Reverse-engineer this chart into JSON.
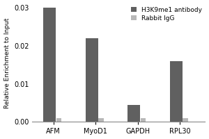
{
  "categories": [
    "AFM",
    "MyoD1",
    "GAPDH",
    "RPL30"
  ],
  "antibody_values": [
    0.03,
    0.022,
    0.0045,
    0.016
  ],
  "igg_values": [
    0.001,
    0.001,
    0.001,
    0.001
  ],
  "antibody_color": "#606060",
  "igg_color": "#b8b8b8",
  "ylabel": "Relative Enrichment to Input",
  "ylim_max": 0.031,
  "yticks": [
    0.0,
    0.01,
    0.02,
    0.03
  ],
  "legend_labels": [
    "H3K9me1 antibody",
    "Rabbit IgG"
  ],
  "antibody_bar_width": 0.3,
  "igg_bar_width": 0.12,
  "fontsize_axis": 6.5,
  "fontsize_legend": 6.5,
  "fontsize_ticks": 7
}
